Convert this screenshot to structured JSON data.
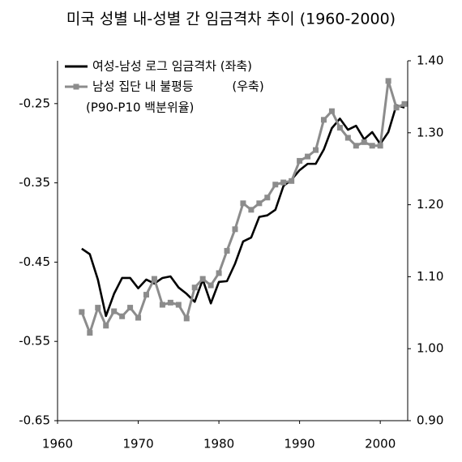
{
  "chart_data": {
    "type": "line",
    "title": "미국 성별 내-성별 간 임금격차 추이 (1960-2000)",
    "x": [
      1963,
      1964,
      1965,
      1966,
      1967,
      1968,
      1969,
      1970,
      1971,
      1972,
      1973,
      1974,
      1975,
      1976,
      1977,
      1978,
      1979,
      1980,
      1981,
      1982,
      1983,
      1984,
      1985,
      1986,
      1987,
      1988,
      1989,
      1990,
      1991,
      1992,
      1993,
      1994,
      1995,
      1996,
      1997,
      1998,
      1999,
      2000,
      2001,
      2002,
      2003
    ],
    "series": [
      {
        "name": "여성-남성 로그 임금격차 (좌축)",
        "color": "#000000",
        "axis": "y",
        "values": [
          -0.433,
          -0.44,
          -0.472,
          -0.518,
          -0.49,
          -0.47,
          -0.47,
          -0.483,
          -0.472,
          -0.477,
          -0.47,
          -0.468,
          -0.482,
          -0.49,
          -0.5,
          -0.472,
          -0.502,
          -0.475,
          -0.474,
          -0.452,
          -0.424,
          -0.419,
          -0.393,
          -0.391,
          -0.384,
          -0.354,
          -0.346,
          -0.334,
          -0.326,
          -0.326,
          -0.308,
          -0.281,
          -0.269,
          -0.283,
          -0.278,
          -0.295,
          -0.286,
          -0.301,
          -0.286,
          -0.252,
          -0.255
        ]
      },
      {
        "name": "남성 집단 내 불평등          (우축)",
        "color": "#8c8c8c",
        "axis": "y2",
        "marker": "square",
        "values": [
          1.051,
          1.022,
          1.057,
          1.032,
          1.052,
          1.045,
          1.057,
          1.043,
          1.075,
          1.097,
          1.061,
          1.064,
          1.061,
          1.042,
          1.085,
          1.097,
          1.088,
          1.105,
          1.136,
          1.166,
          1.202,
          1.193,
          1.202,
          1.21,
          1.228,
          1.231,
          1.233,
          1.261,
          1.267,
          1.276,
          1.318,
          1.33,
          1.307,
          1.293,
          1.282,
          1.287,
          1.282,
          1.282,
          1.372,
          1.335,
          1.34
        ]
      }
    ],
    "legend_note": "(P90-P10 백분위율)",
    "xlim": [
      1960,
      2003.4
    ],
    "xticks": [
      1960,
      1970,
      1980,
      1990,
      2000
    ],
    "ylim": [
      -0.65,
      -0.196
    ],
    "yticks": [
      -0.65,
      -0.55,
      -0.45,
      -0.35,
      -0.25
    ],
    "y2lim": [
      0.9,
      1.4
    ],
    "y2ticks": [
      {
        "value": 0.9,
        "label": "0.90"
      },
      {
        "value": 1.0,
        "label": "1.00"
      },
      {
        "value": 1.1,
        "label": "1.10"
      },
      {
        "value": 1.2,
        "label": "1.20"
      },
      {
        "value": 1.3,
        "label": "1.30"
      },
      {
        "value": 1.4,
        "label": "1.40"
      }
    ]
  }
}
